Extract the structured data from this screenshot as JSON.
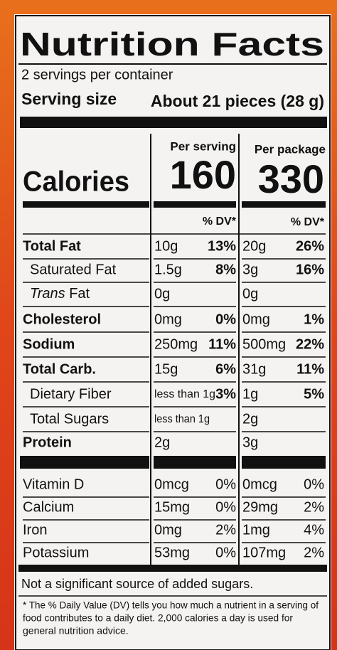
{
  "title": "Nutrition Facts",
  "servings": "2 servings per container",
  "serving_size": {
    "label": "Serving size",
    "value": "About 21 pieces (28 g)"
  },
  "columns": {
    "per_serving": "Per serving",
    "per_package": "Per package"
  },
  "calories": {
    "label": "Calories",
    "per_serving": "160",
    "per_package": "330"
  },
  "dv_header": {
    "per_serving": "% DV*",
    "per_package": "% DV*"
  },
  "rows": [
    {
      "name": "Total Fat",
      "serving_amount": "10g",
      "serving_dv": "13%",
      "package_amount": "20g",
      "package_dv": "26%"
    },
    {
      "name": "Saturated Fat",
      "serving_amount": "1.5g",
      "serving_dv": "8%",
      "package_amount": "3g",
      "package_dv": "16%"
    },
    {
      "name_prefix": "Trans",
      "name": "Fat",
      "serving_amount": "0g",
      "package_amount": "0g"
    },
    {
      "name": "Cholesterol",
      "serving_amount": "0mg",
      "serving_dv": "0%",
      "package_amount": "0mg",
      "package_dv": "1%"
    },
    {
      "name": "Sodium",
      "serving_amount": "250mg",
      "serving_dv": "11%",
      "package_amount": "500mg",
      "package_dv": "22%"
    },
    {
      "name": "Total Carb.",
      "serving_amount": "15g",
      "serving_dv": "6%",
      "package_amount": "31g",
      "package_dv": "11%"
    },
    {
      "name": "Dietary Fiber",
      "serving_amount": "less than 1g",
      "serving_dv": "3%",
      "package_amount": "1g",
      "package_dv": "5%"
    },
    {
      "name": "Total Sugars",
      "serving_amount": "less than 1g",
      "package_amount": "2g"
    },
    {
      "name": "Protein",
      "serving_amount": "2g",
      "package_amount": "3g"
    },
    {
      "name": "Vitamin D",
      "serving_amount": "0mcg",
      "serving_dv": "0%",
      "package_amount": "0mcg",
      "package_dv": "0%"
    },
    {
      "name": "Calcium",
      "serving_amount": "15mg",
      "serving_dv": "0%",
      "package_amount": "29mg",
      "package_dv": "2%"
    },
    {
      "name": "Iron",
      "serving_amount": "0mg",
      "serving_dv": "2%",
      "package_amount": "1mg",
      "package_dv": "4%"
    },
    {
      "name": "Potassium",
      "serving_amount": "53mg",
      "serving_dv": "0%",
      "package_amount": "107mg",
      "package_dv": "2%"
    }
  ],
  "added_sugars_note": "Not a significant source of added sugars.",
  "footnote": [
    "* The % Daily Value (DV) tells you how much a nutrient in a serving of",
    "food contributes to a daily diet. 2,000 calories a day is used for",
    "general nutrition advice."
  ]
}
